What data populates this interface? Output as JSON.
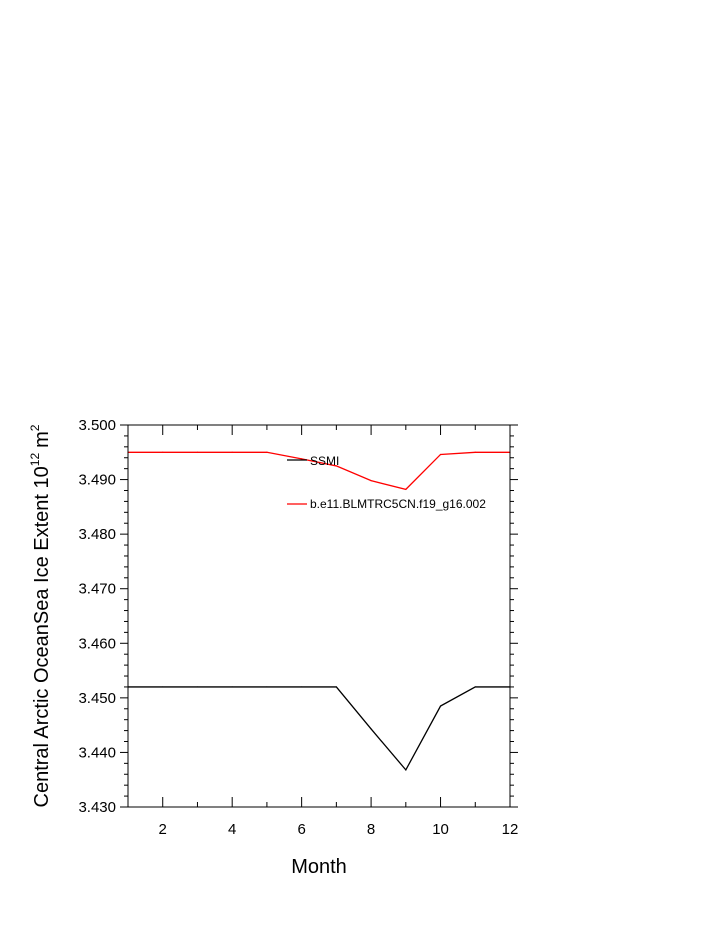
{
  "chart_data": {
    "type": "line",
    "xlabel": "Month",
    "ylabel": "Central Arctic OceanSea Ice Extent 10",
    "ylabel_exp": "12",
    "ylabel_unit": "m",
    "ylabel_unit_exp": "2",
    "xlim": [
      1,
      12
    ],
    "ylim": [
      3.43,
      3.5
    ],
    "x_ticks": [
      2,
      4,
      6,
      8,
      10,
      12
    ],
    "x_tick_labels": [
      "2",
      "4",
      "6",
      "8",
      "10",
      "12"
    ],
    "y_ticks": [
      3.43,
      3.44,
      3.45,
      3.46,
      3.47,
      3.48,
      3.49,
      3.5
    ],
    "y_tick_labels": [
      "3.430",
      "3.440",
      "3.450",
      "3.460",
      "3.470",
      "3.480",
      "3.490",
      "3.500"
    ],
    "legend_position": "top-right",
    "x": [
      1,
      2,
      3,
      4,
      5,
      6,
      7,
      8,
      9,
      10,
      11,
      12
    ],
    "series": [
      {
        "name": "SSMI",
        "color": "#000000",
        "values": [
          3.452,
          3.452,
          3.452,
          3.452,
          3.452,
          3.452,
          3.452,
          3.4443,
          3.4368,
          3.4485,
          3.452,
          3.452
        ]
      },
      {
        "name": "b.e11.BLMTRC5CN.f19_g16.002",
        "color": "#ff0000",
        "values": [
          3.495,
          3.495,
          3.495,
          3.495,
          3.495,
          3.4938,
          3.4925,
          3.4898,
          3.4882,
          3.4946,
          3.495,
          3.495
        ]
      }
    ]
  }
}
